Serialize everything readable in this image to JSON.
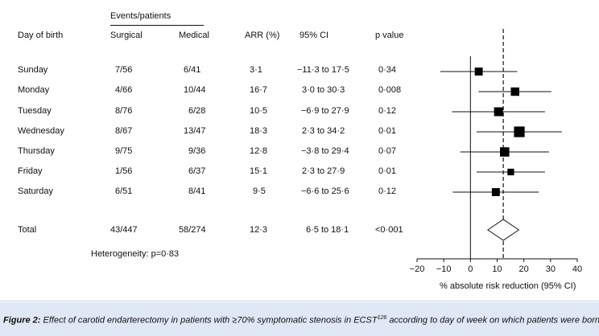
{
  "headers": {
    "events_patients": "Events/patients",
    "day_of_birth": "Day of birth",
    "surgical": "Surgical",
    "medical": "Medical",
    "arr": "ARR (%)",
    "ci": "95% CI",
    "pvalue": "p value"
  },
  "rows": [
    {
      "day": "Sunday",
      "surgical": "7/56",
      "medical": "6/41",
      "arr": "3·1",
      "ci": "−11·3 to 17·5",
      "p": "0·34"
    },
    {
      "day": "Monday",
      "surgical": "4/66",
      "medical": "10/44",
      "arr": "16·7",
      "ci": "3·0 to 30·3",
      "p": "0·008"
    },
    {
      "day": "Tuesday",
      "surgical": "8/76",
      "medical": "6/28",
      "arr": "10·5",
      "ci": "−6·9 to 27·9",
      "p": "0·12"
    },
    {
      "day": "Wednesday",
      "surgical": "8/67",
      "medical": "13/47",
      "arr": "18·3",
      "ci": "2·3 to 34·2",
      "p": "0·01"
    },
    {
      "day": "Thursday",
      "surgical": "9/75",
      "medical": "9/36",
      "arr": "12·8",
      "ci": "−3·8 to 29·4",
      "p": "0·07"
    },
    {
      "day": "Friday",
      "surgical": "1/56",
      "medical": "6/37",
      "arr": "15·1",
      "ci": "2·3 to 27·9",
      "p": "0·01"
    },
    {
      "day": "Saturday",
      "surgical": "6/51",
      "medical": "8/41",
      "arr": "9·5",
      "ci": "−6·6 to 25·6",
      "p": "0·12"
    }
  ],
  "total": {
    "day": "Total",
    "surgical": "43/447",
    "medical": "58/274",
    "arr": "12·3",
    "ci": "6·5 to 18·1",
    "p": "<0·001"
  },
  "heterogeneity": "Heterogeneity: p=0·83",
  "caption": {
    "prefix": "Figure 2:",
    "text": "Effect of carotid endarterectomy in patients with ≥70% symptomatic stenosis in ECST",
    "sup": "126",
    "suffix": "according to day of week on which patients were born"
  },
  "colors": {
    "caption_bg": "#dfe8f4",
    "marker": "#000000"
  },
  "chart_data": {
    "type": "scatter",
    "subtype": "forest-plot",
    "xlabel": "% absolute risk reduction (95% CI)",
    "xlim": [
      -20,
      40
    ],
    "ticks": [
      -20,
      -10,
      0,
      10,
      20,
      30,
      40
    ],
    "tick_labels": [
      "−20",
      "−10",
      "0",
      "10",
      "20",
      "30",
      "40"
    ],
    "reference_line_x": 12.3,
    "points": [
      {
        "label": "Sunday",
        "x": 3.1,
        "lo": -11.3,
        "hi": 17.5,
        "weight": 0.9
      },
      {
        "label": "Monday",
        "x": 16.7,
        "lo": 3.0,
        "hi": 30.3,
        "weight": 0.95
      },
      {
        "label": "Tuesday",
        "x": 10.5,
        "lo": -6.9,
        "hi": 27.9,
        "weight": 1.0
      },
      {
        "label": "Wednesday",
        "x": 18.3,
        "lo": 2.3,
        "hi": 34.2,
        "weight": 1.2
      },
      {
        "label": "Thursday",
        "x": 12.8,
        "lo": -3.8,
        "hi": 29.4,
        "weight": 1.05
      },
      {
        "label": "Friday",
        "x": 15.1,
        "lo": 2.3,
        "hi": 27.9,
        "weight": 0.75
      },
      {
        "label": "Saturday",
        "x": 9.5,
        "lo": -6.6,
        "hi": 25.6,
        "weight": 0.9
      }
    ],
    "total": {
      "label": "Total",
      "x": 12.3,
      "lo": 6.5,
      "hi": 18.1
    }
  }
}
